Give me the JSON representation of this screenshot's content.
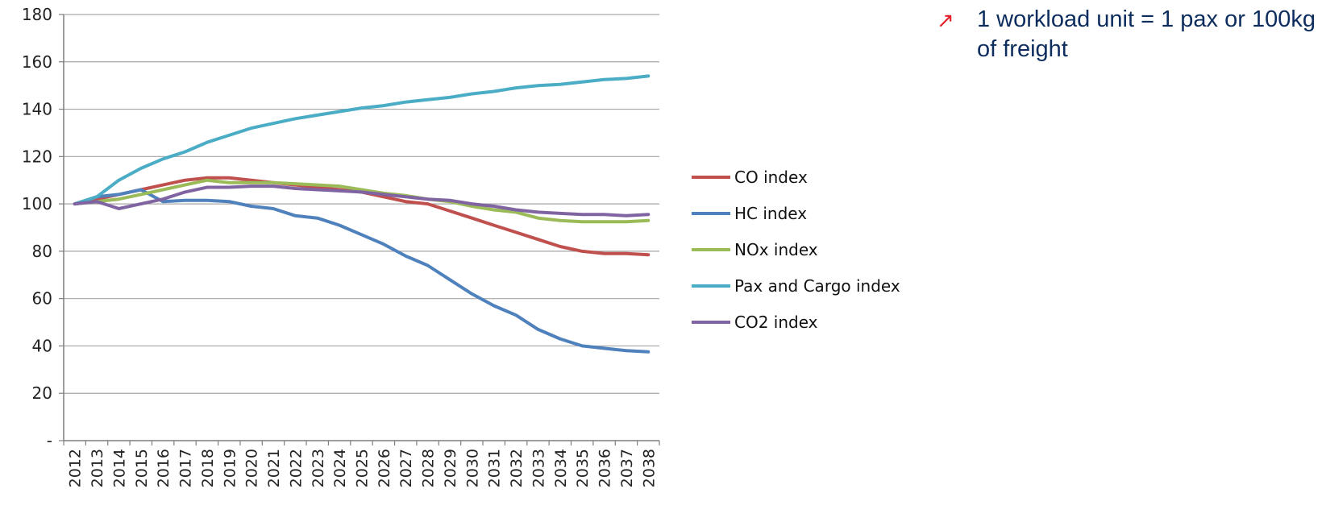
{
  "note": {
    "bullet_icon": "arrow-up-right-icon",
    "bullet_color": "#e41e26",
    "text": "1 workload unit = 1 pax or 100kg of freight"
  },
  "chart_data": {
    "type": "line",
    "title": "",
    "xlabel": "",
    "ylabel": "",
    "ylim": [
      0,
      180
    ],
    "yticks": [
      {
        "value": 0,
        "label": "-"
      },
      {
        "value": 20,
        "label": "20"
      },
      {
        "value": 40,
        "label": "40"
      },
      {
        "value": 60,
        "label": "60"
      },
      {
        "value": 80,
        "label": "80"
      },
      {
        "value": 100,
        "label": "100"
      },
      {
        "value": 120,
        "label": "120"
      },
      {
        "value": 140,
        "label": "140"
      },
      {
        "value": 160,
        "label": "160"
      },
      {
        "value": 180,
        "label": "180"
      }
    ],
    "grid": true,
    "legend_position": "right",
    "categories": [
      "2012",
      "2013",
      "2014",
      "2015",
      "2016",
      "2017",
      "2018",
      "2019",
      "2020",
      "2021",
      "2022",
      "2023",
      "2024",
      "2025",
      "2026",
      "2027",
      "2028",
      "2029",
      "2030",
      "2031",
      "2032",
      "2033",
      "2034",
      "2035",
      "2036",
      "2037",
      "2038"
    ],
    "series": [
      {
        "name": "CO index",
        "color": "#c0504d",
        "values": [
          100,
          102,
          104,
          106,
          108,
          110,
          111,
          111,
          110,
          109,
          108,
          107,
          106,
          105,
          103,
          101,
          100,
          97,
          94,
          91,
          88,
          85,
          82,
          80,
          79,
          79,
          78.5
        ]
      },
      {
        "name": "HC index",
        "color": "#4f81bd",
        "values": [
          100,
          103,
          104,
          106,
          101,
          101.5,
          101.5,
          101,
          99,
          98,
          95,
          94,
          91,
          87,
          83,
          78,
          74,
          68,
          62,
          57,
          53,
          47,
          43,
          40,
          39,
          38,
          37.5
        ]
      },
      {
        "name": "NOx index",
        "color": "#9bbb59",
        "values": [
          100,
          101,
          102,
          104,
          106,
          108,
          110,
          109,
          109,
          109,
          108.5,
          108,
          107.5,
          106,
          104.5,
          103.5,
          102,
          101,
          99,
          97.5,
          96.5,
          94,
          93,
          92.5,
          92.5,
          92.5,
          93
        ]
      },
      {
        "name": "Pax and Cargo index",
        "color": "#4bacc6",
        "values": [
          100,
          103,
          110,
          115,
          119,
          122,
          126,
          129,
          132,
          134,
          136,
          137.5,
          139,
          140.5,
          141.5,
          143,
          144,
          145,
          146.5,
          147.5,
          149,
          150,
          150.5,
          151.5,
          152.5,
          153,
          154
        ]
      },
      {
        "name": "CO2 index",
        "color": "#8064a2",
        "values": [
          100,
          101,
          98,
          100,
          102,
          105,
          107,
          107,
          107.5,
          107.5,
          106.5,
          106,
          105.5,
          105,
          104,
          103,
          102,
          101.5,
          100,
          99,
          97.5,
          96.5,
          96,
          95.5,
          95.5,
          95,
          95.5
        ]
      }
    ]
  }
}
